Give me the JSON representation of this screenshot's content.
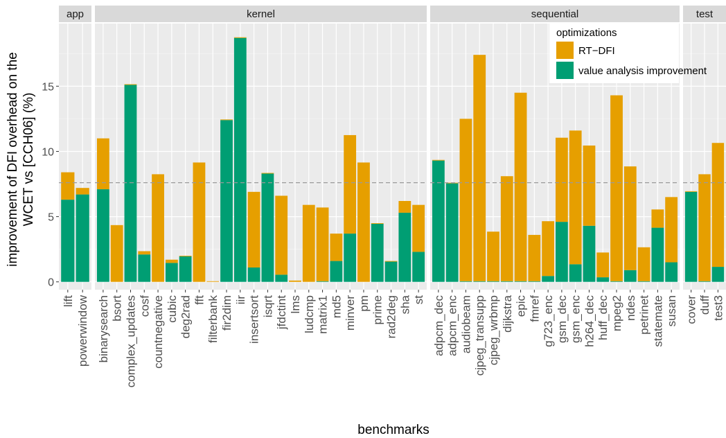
{
  "chart_data": {
    "type": "bar",
    "stacked": true,
    "faceted": true,
    "xlabel": "benchmarks",
    "ylabel_lines": [
      "improvement of DFI overhead on the",
      "WCET vs [CCH06] (%)"
    ],
    "yticks": [
      0,
      5,
      10,
      15
    ],
    "ylim": [
      -0.6,
      19.8
    ],
    "reference_line_y": 7.6,
    "grid": true,
    "legend": {
      "title": "optimizations",
      "placement": "top-right",
      "entries": [
        {
          "name": "RT−DFI",
          "color": "#E69F00"
        },
        {
          "name": "value analysis improvement",
          "color": "#009E73"
        }
      ]
    },
    "series_order": [
      "value analysis improvement",
      "RT−DFI"
    ],
    "panels": [
      {
        "name": "app",
        "categories": [
          "lift",
          "powerwindow"
        ],
        "value_analysis_improvement": [
          6.3,
          6.7
        ],
        "rt_dfi": [
          2.1,
          0.5
        ]
      },
      {
        "name": "kernel",
        "categories": [
          "binarysearch",
          "bsort",
          "complex_updates",
          "cosf",
          "countnegative",
          "cubic",
          "deg2rad",
          "fft",
          "filterbank",
          "fir2dim",
          "iir",
          "insertsort",
          "isqrt",
          "jfdctint",
          "lms",
          "ludcmp",
          "matrix1",
          "md5",
          "minver",
          "pm",
          "prime",
          "rad2deg",
          "sha",
          "st"
        ],
        "value_analysis_improvement": [
          7.1,
          0.0,
          15.1,
          2.1,
          0.0,
          1.45,
          1.95,
          0.0,
          0.0,
          12.4,
          18.7,
          1.1,
          8.3,
          0.55,
          0.0,
          0.0,
          0.05,
          1.6,
          3.7,
          0.0,
          4.45,
          1.55,
          5.3,
          2.3
        ],
        "rt_dfi": [
          3.9,
          4.35,
          0.05,
          0.25,
          8.25,
          0.25,
          0.05,
          9.15,
          0.05,
          0.05,
          0.05,
          5.8,
          0.05,
          6.05,
          0.1,
          5.9,
          5.65,
          2.1,
          7.55,
          9.15,
          0.05,
          0.05,
          0.9,
          3.6
        ]
      },
      {
        "name": "sequential",
        "categories": [
          "adpcm_dec",
          "adpcm_enc",
          "audiobeam",
          "cjpeg_transupp",
          "cjpeg_wrbmp",
          "dijkstra",
          "epic",
          "fmref",
          "g723_enc",
          "gsm_dec",
          "gsm_enc",
          "h264_dec",
          "huff_dec",
          "mpeg2",
          "ndes",
          "petrinet",
          "statemate",
          "susan"
        ],
        "value_analysis_improvement": [
          9.3,
          7.55,
          0.05,
          0.05,
          0.05,
          0.05,
          0.05,
          0.05,
          0.45,
          4.6,
          1.35,
          4.3,
          0.35,
          0.05,
          0.9,
          0.05,
          4.15,
          1.5
        ],
        "rt_dfi": [
          0.05,
          0.05,
          12.45,
          17.35,
          3.8,
          8.05,
          14.45,
          3.55,
          4.2,
          6.45,
          10.25,
          6.15,
          1.9,
          14.25,
          7.95,
          2.6,
          1.4,
          5.0
        ]
      },
      {
        "name": "test",
        "categories": [
          "cover",
          "duff",
          "test3"
        ],
        "value_analysis_improvement": [
          6.9,
          0.05,
          1.15
        ],
        "rt_dfi": [
          0.05,
          8.2,
          9.5
        ]
      }
    ]
  }
}
